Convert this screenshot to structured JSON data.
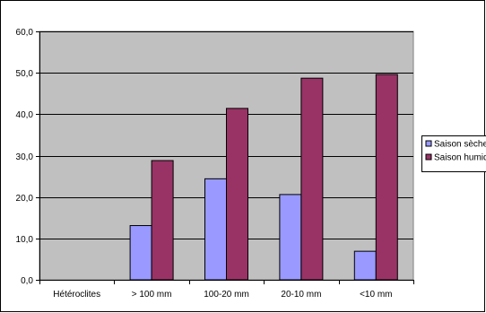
{
  "chart_data": {
    "type": "bar",
    "title": "",
    "xlabel": "",
    "ylabel": "",
    "categories": [
      "Hétéroclites",
      "> 100 mm",
      "100-20 mm",
      "20-10 mm",
      "<10 mm"
    ],
    "series": [
      {
        "name": "Saison sèche",
        "color": "#9999ff",
        "values": [
          0,
          13.1,
          24.4,
          20.6,
          6.9
        ]
      },
      {
        "name": "Saison humide",
        "color": "#993366",
        "values": [
          0,
          28.8,
          41.4,
          48.7,
          49.6
        ]
      }
    ],
    "ylim": [
      0,
      60
    ],
    "yticks": [
      "0,0",
      "10,0",
      "20,0",
      "30,0",
      "40,0",
      "50,0",
      "60,0"
    ],
    "plot_background": "#c0c0c0",
    "grid": true,
    "legend_position": "right"
  }
}
